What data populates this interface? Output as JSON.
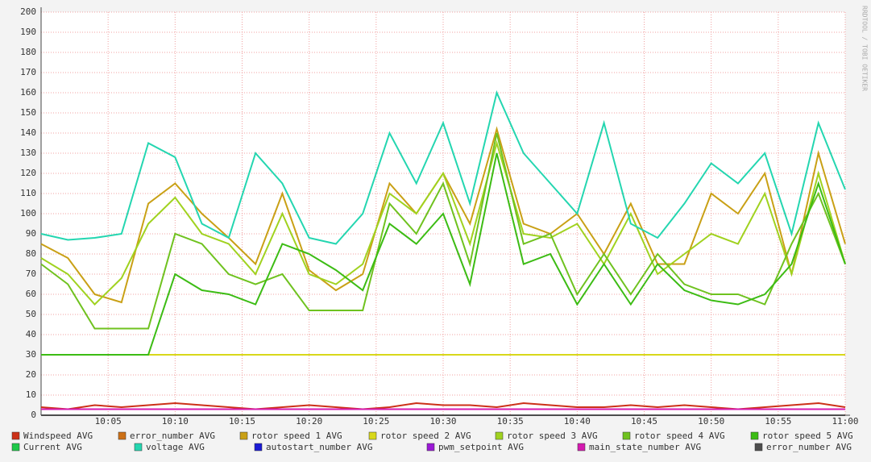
{
  "chart_data": {
    "type": "line",
    "watermark": "RRDTOOL / TOBI OETIKER",
    "x": [
      0,
      2,
      4,
      6,
      8,
      10,
      12,
      14,
      16,
      18,
      20,
      22,
      24,
      26,
      28,
      30,
      32,
      34,
      36,
      38,
      40,
      42,
      44,
      46,
      48,
      50,
      52,
      54,
      56,
      58,
      60
    ],
    "xlim": [
      0,
      60
    ],
    "xticks": [
      {
        "value": 5,
        "label": "10:05"
      },
      {
        "value": 10,
        "label": "10:10"
      },
      {
        "value": 15,
        "label": "10:15"
      },
      {
        "value": 20,
        "label": "10:20"
      },
      {
        "value": 25,
        "label": "10:25"
      },
      {
        "value": 30,
        "label": "10:30"
      },
      {
        "value": 35,
        "label": "10:35"
      },
      {
        "value": 40,
        "label": "10:40"
      },
      {
        "value": 45,
        "label": "10:45"
      },
      {
        "value": 50,
        "label": "10:50"
      },
      {
        "value": 55,
        "label": "10:55"
      },
      {
        "value": 60,
        "label": "11:00"
      }
    ],
    "ylim": [
      0,
      200
    ],
    "yticks": [
      0,
      10,
      20,
      30,
      40,
      50,
      60,
      70,
      80,
      90,
      100,
      110,
      120,
      130,
      140,
      150,
      160,
      170,
      180,
      190,
      200
    ],
    "grid": true,
    "series": [
      {
        "name": "Windspeed AVG",
        "color": "#cc3118",
        "values": [
          4,
          3,
          5,
          4,
          5,
          6,
          5,
          4,
          3,
          4,
          5,
          4,
          3,
          4,
          6,
          5,
          5,
          4,
          6,
          5,
          4,
          4,
          5,
          4,
          5,
          4,
          3,
          4,
          5,
          6,
          4
        ]
      },
      {
        "name": "error_number AVG",
        "color": "#cc7016",
        "values": [
          0,
          0,
          0,
          0,
          0,
          0,
          0,
          0,
          0,
          0,
          0,
          0,
          0,
          0,
          0,
          0,
          0,
          0,
          0,
          0,
          0,
          0,
          0,
          0,
          0,
          0,
          0,
          0,
          0,
          0,
          0
        ]
      },
      {
        "name": "rotor speed 1 AVG",
        "color": "#c9a015",
        "values": [
          85,
          78,
          60,
          56,
          105,
          115,
          100,
          88,
          75,
          110,
          72,
          62,
          70,
          115,
          100,
          120,
          95,
          142,
          95,
          90,
          100,
          80,
          105,
          75,
          75,
          110,
          100,
          120,
          70,
          130,
          85
        ]
      },
      {
        "name": "rotor speed 2 AVG",
        "color": "#d8d81a",
        "values": [
          30,
          30,
          30,
          30,
          30,
          30,
          30,
          30,
          30,
          30,
          30,
          30,
          30,
          30,
          30,
          30,
          30,
          30,
          30,
          30,
          30,
          30,
          30,
          30,
          30,
          30,
          30,
          30,
          30,
          30,
          30
        ]
      },
      {
        "name": "rotor speed 3 AVG",
        "color": "#a0d21f",
        "values": [
          78,
          70,
          55,
          68,
          95,
          108,
          90,
          85,
          70,
          100,
          70,
          65,
          75,
          110,
          100,
          120,
          85,
          135,
          90,
          88,
          95,
          75,
          100,
          70,
          80,
          90,
          85,
          110,
          70,
          120,
          75
        ]
      },
      {
        "name": "rotor speed 4 AVG",
        "color": "#6fc21f",
        "values": [
          75,
          65,
          43,
          43,
          43,
          90,
          85,
          70,
          65,
          70,
          52,
          52,
          52,
          105,
          90,
          115,
          75,
          140,
          85,
          90,
          60,
          80,
          60,
          80,
          65,
          60,
          60,
          55,
          85,
          110,
          75
        ]
      },
      {
        "name": "rotor speed 5 AVG",
        "color": "#3cbc14",
        "values": [
          30,
          30,
          30,
          30,
          30,
          70,
          62,
          60,
          55,
          85,
          80,
          72,
          62,
          95,
          85,
          100,
          65,
          130,
          75,
          80,
          55,
          75,
          55,
          75,
          62,
          57,
          55,
          60,
          75,
          115,
          75
        ]
      },
      {
        "name": "Current AVG",
        "color": "#1ec94a",
        "values": [
          0,
          0,
          0,
          0,
          0,
          0,
          0,
          0,
          0,
          0,
          0,
          0,
          0,
          0,
          0,
          0,
          0,
          0,
          0,
          0,
          0,
          0,
          0,
          0,
          0,
          0,
          0,
          0,
          0,
          0,
          0
        ]
      },
      {
        "name": "voltage AVG",
        "color": "#24d6b0",
        "values": [
          90,
          87,
          88,
          90,
          135,
          128,
          95,
          88,
          130,
          115,
          88,
          85,
          100,
          140,
          115,
          145,
          105,
          160,
          130,
          115,
          100,
          145,
          95,
          88,
          105,
          125,
          115,
          130,
          90,
          145,
          112
        ]
      },
      {
        "name": "autostart_number AVG",
        "color": "#1a1ad4",
        "values": [
          0,
          0,
          0,
          0,
          0,
          0,
          0,
          0,
          0,
          0,
          0,
          0,
          0,
          0,
          0,
          0,
          0,
          0,
          0,
          0,
          0,
          0,
          0,
          0,
          0,
          0,
          0,
          0,
          0,
          0,
          0
        ]
      },
      {
        "name": "pwm_setpoint AVG",
        "color": "#9b19d6",
        "values": [
          0,
          0,
          0,
          0,
          0,
          0,
          0,
          0,
          0,
          0,
          0,
          0,
          0,
          0,
          0,
          0,
          0,
          0,
          0,
          0,
          0,
          0,
          0,
          0,
          0,
          0,
          0,
          0,
          0,
          0,
          0
        ]
      },
      {
        "name": "main_state_number AVG",
        "color": "#d41ab0",
        "values": [
          3,
          3,
          3,
          3,
          3,
          3,
          3,
          3,
          3,
          3,
          3,
          3,
          3,
          3,
          3,
          3,
          3,
          3,
          3,
          3,
          3,
          3,
          3,
          3,
          3,
          3,
          3,
          3,
          3,
          3,
          3
        ]
      },
      {
        "name": "error_number AVG",
        "color": "#4d4d4d",
        "values": [
          0,
          0,
          0,
          0,
          0,
          0,
          0,
          0,
          0,
          0,
          0,
          0,
          0,
          0,
          0,
          0,
          0,
          0,
          0,
          0,
          0,
          0,
          0,
          0,
          0,
          0,
          0,
          0,
          0,
          0,
          0
        ]
      }
    ]
  }
}
